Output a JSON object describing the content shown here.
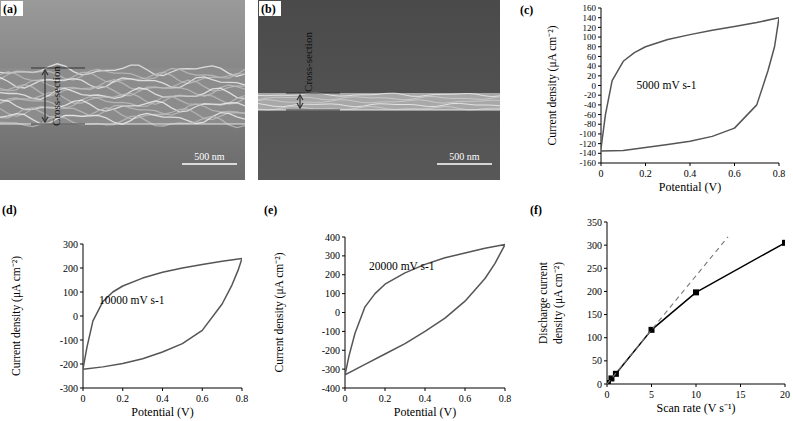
{
  "images": [
    {
      "label": "(a)",
      "annotation": "Cross-section",
      "scale_bar": "500 nm"
    },
    {
      "label": "(b)",
      "annotation": "Cross-section",
      "scale_bar": "500 nm"
    }
  ],
  "chart_data": [
    {
      "type": "line",
      "title": "(c)",
      "x_label": "Potential (V)",
      "y_label": "Current density (μA cm⁻²)",
      "annotation": "5000 mV s-1",
      "x": [
        0,
        0.02,
        0.05,
        0.1,
        0.15,
        0.2,
        0.3,
        0.4,
        0.5,
        0.6,
        0.7,
        0.8,
        0.78,
        0.75,
        0.7,
        0.6,
        0.5,
        0.4,
        0.3,
        0.2,
        0.1,
        0
      ],
      "series": [
        {
          "color": "#555555",
          "values": [
            -130,
            -60,
            10,
            50,
            68,
            80,
            95,
            105,
            114,
            122,
            130,
            140,
            80,
            30,
            -40,
            -88,
            -105,
            -115,
            -122,
            -128,
            -134,
            -135
          ]
        }
      ],
      "xlim": [
        0,
        0.8
      ],
      "ylim": [
        -160,
        160
      ],
      "xticks": [
        0,
        0.2,
        0.4,
        0.6,
        0.8
      ],
      "yticks": [
        -160,
        -140,
        -120,
        -100,
        -80,
        -60,
        -40,
        -20,
        0,
        20,
        40,
        60,
        80,
        100,
        120,
        140,
        160
      ]
    },
    {
      "type": "line",
      "title": "(d)",
      "x_label": "Potential (V)",
      "y_label": "Current density (μA cm⁻²)",
      "annotation": "10000 mV s-1",
      "x": [
        0,
        0.02,
        0.05,
        0.1,
        0.15,
        0.2,
        0.3,
        0.4,
        0.5,
        0.6,
        0.7,
        0.8,
        0.78,
        0.75,
        0.7,
        0.6,
        0.5,
        0.4,
        0.3,
        0.2,
        0.1,
        0
      ],
      "series": [
        {
          "color": "#555555",
          "values": [
            -220,
            -130,
            -20,
            60,
            100,
            125,
            158,
            182,
            200,
            215,
            228,
            240,
            190,
            130,
            50,
            -60,
            -115,
            -150,
            -178,
            -198,
            -212,
            -222
          ]
        }
      ],
      "xlim": [
        0,
        0.8
      ],
      "ylim": [
        -300,
        300
      ],
      "xticks": [
        0,
        0.2,
        0.4,
        0.6,
        0.8
      ],
      "yticks": [
        -300,
        -200,
        -100,
        0,
        100,
        200,
        300
      ]
    },
    {
      "type": "line",
      "title": "(e)",
      "x_label": "Potential (V)",
      "y_label": "Current density (μA cm⁻²)",
      "annotation": "20000 mV s-1",
      "x": [
        0,
        0.02,
        0.05,
        0.1,
        0.15,
        0.2,
        0.3,
        0.4,
        0.5,
        0.6,
        0.7,
        0.8,
        0.78,
        0.75,
        0.7,
        0.6,
        0.5,
        0.4,
        0.3,
        0.2,
        0.1,
        0
      ],
      "series": [
        {
          "color": "#555555",
          "values": [
            -330,
            -230,
            -110,
            30,
            100,
            150,
            210,
            255,
            290,
            315,
            340,
            360,
            320,
            260,
            180,
            60,
            -30,
            -100,
            -165,
            -220,
            -275,
            -330
          ]
        }
      ],
      "xlim": [
        0,
        0.8
      ],
      "ylim": [
        -400,
        400
      ],
      "xticks": [
        0,
        0.2,
        0.4,
        0.6,
        0.8
      ],
      "yticks": [
        -400,
        -300,
        -200,
        -100,
        0,
        100,
        200,
        300,
        400
      ]
    },
    {
      "type": "line",
      "title": "(f)",
      "x_label": "Scan rate (V s⁻¹)",
      "y_label": [
        "Discharge current",
        "density (μA cm⁻²)"
      ],
      "series": [
        {
          "color": "#000000",
          "marker": "square",
          "line_style": "solid",
          "x": [
            0.1,
            0.5,
            1,
            5,
            10,
            20
          ],
          "values": [
            2,
            12,
            22,
            117,
            198,
            305
          ]
        },
        {
          "color": "#777777",
          "marker": "none",
          "line_style": "dashed",
          "x": [
            0,
            13.6
          ],
          "values": [
            0,
            318
          ]
        }
      ],
      "xlim": [
        0,
        20
      ],
      "ylim": [
        0,
        350
      ],
      "xticks": [
        0,
        5,
        10,
        15,
        20
      ],
      "yticks": [
        0,
        50,
        100,
        150,
        200,
        250,
        300,
        350
      ]
    }
  ]
}
